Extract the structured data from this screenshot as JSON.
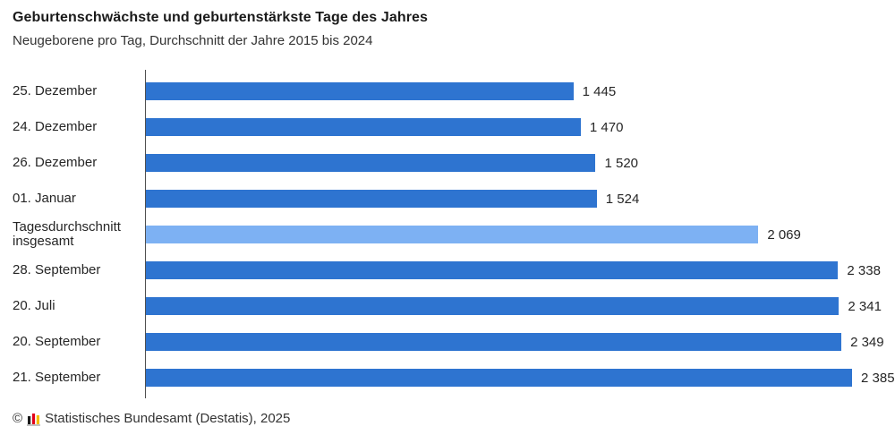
{
  "header": {
    "title": "Geburtenschwächste und geburtenstärkste Tage des Jahres",
    "subtitle": "Neugeborene pro Tag, Durchschnitt der Jahre 2015 bis 2024"
  },
  "chart_data": {
    "type": "bar",
    "orientation": "horizontal",
    "title": "Geburtenschwächste und geburtenstärkste Tage des Jahres",
    "subtitle": "Neugeborene pro Tag, Durchschnitt der Jahre 2015 bis 2024",
    "categories": [
      "25. Dezember",
      "24. Dezember",
      "26. Dezember",
      "01. Januar",
      "Tagesdurchschnitt insgesamt",
      "28. September",
      "20. Juli",
      "20. September",
      "21. September"
    ],
    "values": [
      1445,
      1470,
      1520,
      1524,
      2069,
      2338,
      2341,
      2349,
      2385
    ],
    "value_labels": [
      "1 445",
      "1 470",
      "1 520",
      "1 524",
      "2 069",
      "2 338",
      "2 341",
      "2 349",
      "2 385"
    ],
    "highlight_index": 4,
    "xlim": [
      0,
      2385
    ],
    "xlabel": "",
    "ylabel": "",
    "grid": false,
    "legend": false,
    "colors": {
      "bar": "#2E74D0",
      "highlight": "#7DB1F3",
      "axis": "#4F4F4F"
    }
  },
  "footer": {
    "copyright": "©",
    "source": "Statistisches Bundesamt (Destatis), 2025",
    "logo_colors": {
      "black": "#1a1a1a",
      "red": "#e2001a",
      "gold": "#f5bd00",
      "baseline": "#9a9a9a"
    }
  }
}
